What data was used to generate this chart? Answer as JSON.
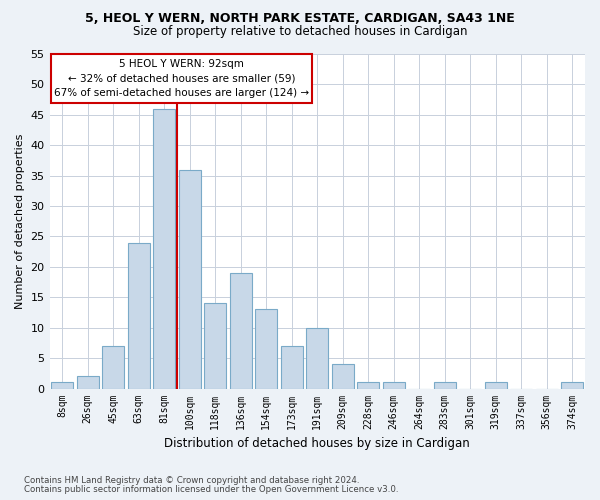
{
  "title_line1": "5, HEOL Y WERN, NORTH PARK ESTATE, CARDIGAN, SA43 1NE",
  "title_line2": "Size of property relative to detached houses in Cardigan",
  "xlabel": "Distribution of detached houses by size in Cardigan",
  "ylabel": "Number of detached properties",
  "bar_labels": [
    "8sqm",
    "26sqm",
    "45sqm",
    "63sqm",
    "81sqm",
    "100sqm",
    "118sqm",
    "136sqm",
    "154sqm",
    "173sqm",
    "191sqm",
    "209sqm",
    "228sqm",
    "246sqm",
    "264sqm",
    "283sqm",
    "301sqm",
    "319sqm",
    "337sqm",
    "356sqm",
    "374sqm"
  ],
  "bar_values": [
    1,
    2,
    7,
    24,
    46,
    36,
    14,
    19,
    13,
    7,
    10,
    4,
    1,
    1,
    0,
    1,
    0,
    1,
    0,
    0,
    1
  ],
  "bar_color": "#c8d8e8",
  "bar_edge_color": "#7aaac8",
  "vline_x": 4.5,
  "vline_color": "#cc0000",
  "ylim": [
    0,
    55
  ],
  "yticks": [
    0,
    5,
    10,
    15,
    20,
    25,
    30,
    35,
    40,
    45,
    50,
    55
  ],
  "annotation_text_line1": "5 HEOL Y WERN: 92sqm",
  "annotation_text_line2": "← 32% of detached houses are smaller (59)",
  "annotation_text_line3": "67% of semi-detached houses are larger (124) →",
  "footer_line1": "Contains HM Land Registry data © Crown copyright and database right 2024.",
  "footer_line2": "Contains public sector information licensed under the Open Government Licence v3.0.",
  "bg_color": "#edf2f7",
  "plot_bg_color": "#ffffff",
  "grid_color": "#c8d0dc"
}
